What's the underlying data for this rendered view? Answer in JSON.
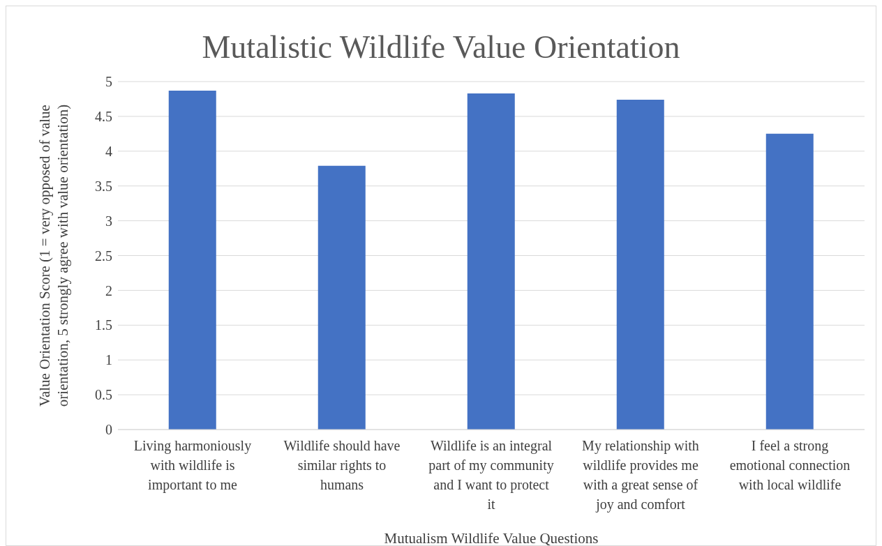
{
  "chart_data": {
    "type": "bar",
    "title": "Mutalistic Wildlife Value Orientation",
    "xlabel": "Mutualism Wildlife Value Questions",
    "ylabel": "Value Orientation Score (1 = very opposed of value orientation, 5 strongly agree with value orientation)",
    "categories": [
      "Living harmoniously with wildlife is important to me",
      "Wildlife should have similar rights to humans",
      "Wildlife is an integral part of my community and I want to protect it",
      "My relationship with wildlife provides me with a great sense of joy and comfort",
      "I feel a strong emotional connection with local wildlife"
    ],
    "values": [
      4.87,
      3.79,
      4.83,
      4.74,
      4.25
    ],
    "color": "#4472c4",
    "ylim": [
      0,
      5
    ],
    "yticks": [
      0,
      0.5,
      1,
      1.5,
      2,
      2.5,
      3,
      3.5,
      4,
      4.5,
      5
    ],
    "grid": "y"
  }
}
